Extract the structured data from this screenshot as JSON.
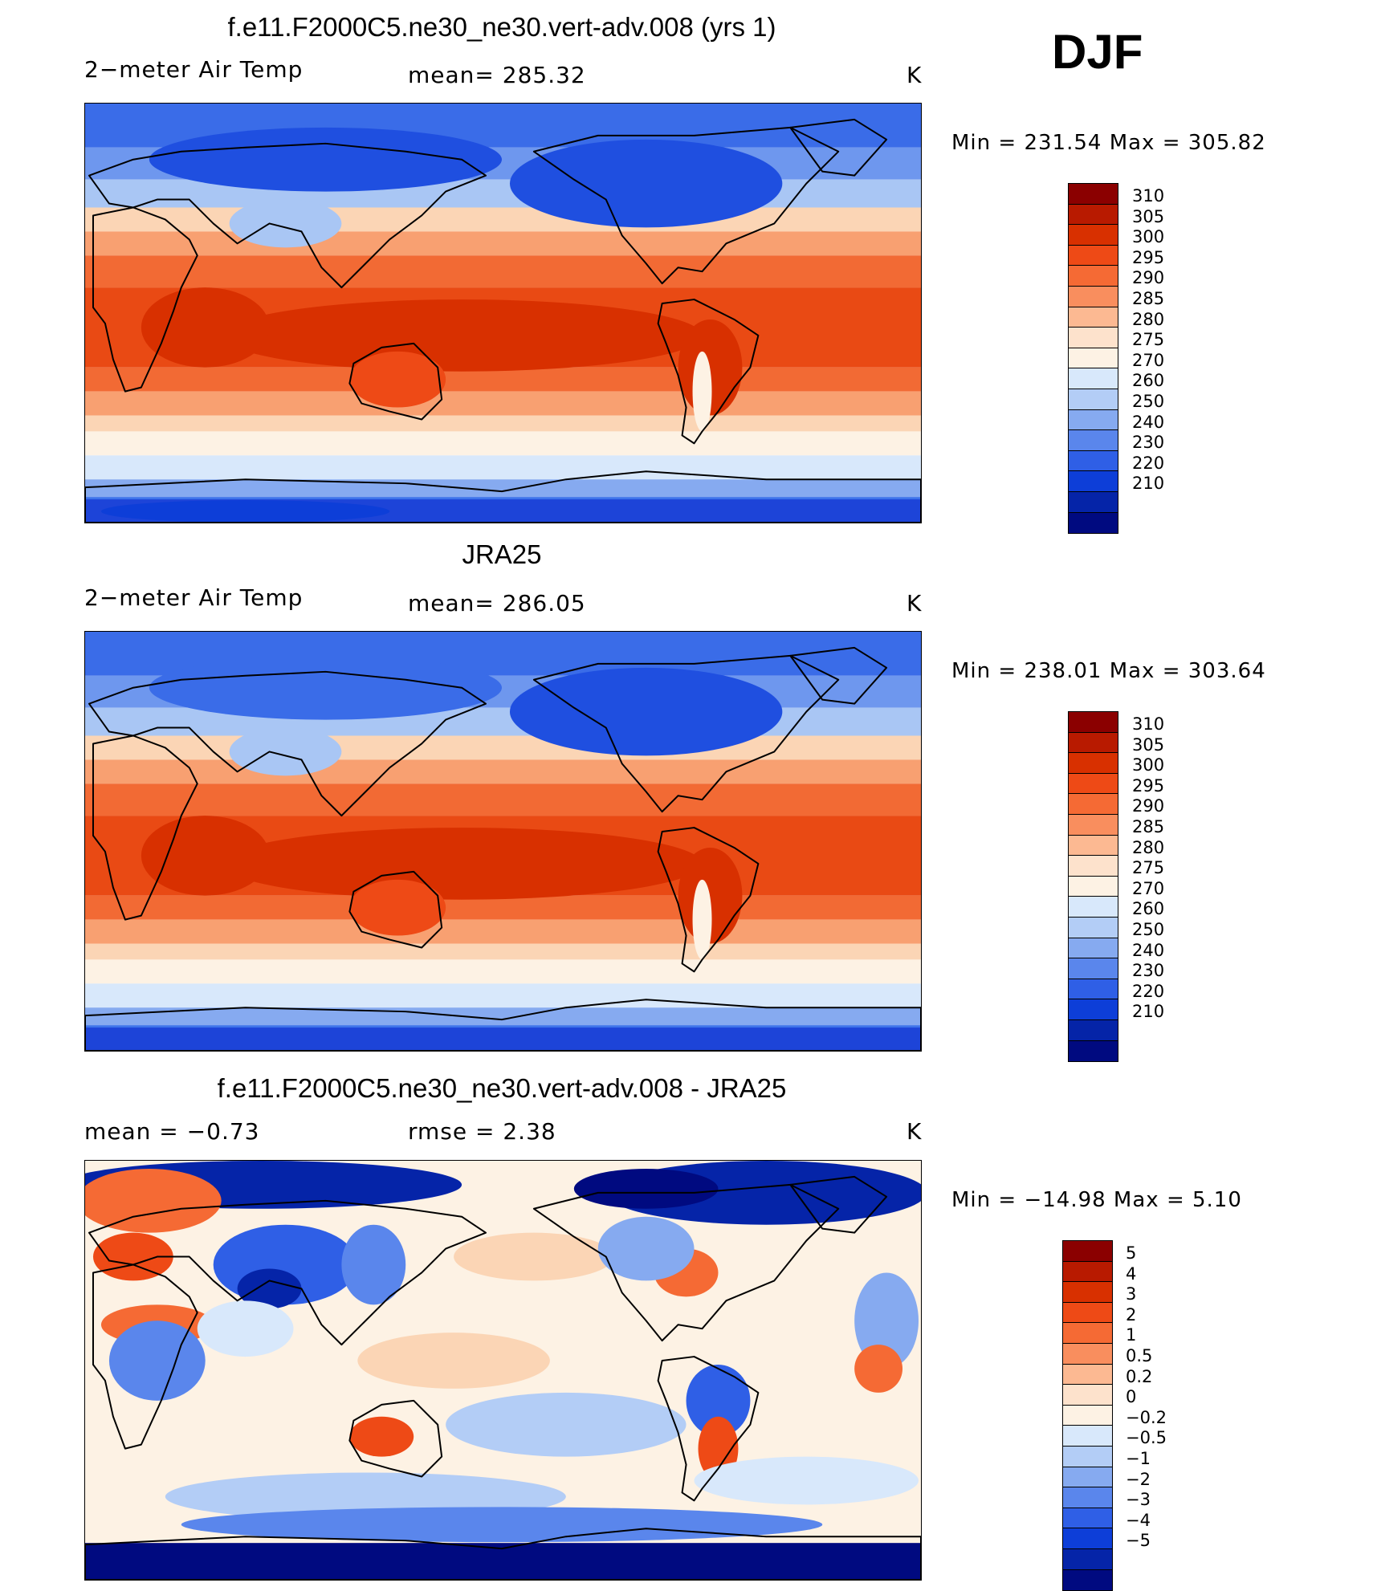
{
  "season": "DJF",
  "panels": [
    {
      "title": "f.e11.F2000C5.ne30_ne30.vert-adv.008 (yrs 1)",
      "left_label": "2−meter Air Temp",
      "center_label": "mean=  285.32",
      "units": "K",
      "minmax": "Min  =  231.54  Max  =  305.82",
      "field": "model"
    },
    {
      "title": "JRA25",
      "left_label": "2−meter Air Temp",
      "center_label": "mean=  286.05",
      "units": "K",
      "minmax": "Min  =  238.01  Max  =  303.64",
      "field": "obs"
    },
    {
      "title": "f.e11.F2000C5.ne30_ne30.vert-adv.008 - JRA25",
      "left_label": "mean  =     −0.73",
      "center_label": "rmse  =     2.38",
      "units": "K",
      "minmax": "Min  =  −14.98  Max  =      5.10",
      "field": "diff"
    }
  ],
  "colorbars": {
    "temp": {
      "labels": [
        "310",
        "305",
        "300",
        "295",
        "290",
        "285",
        "280",
        "275",
        "270",
        "260",
        "250",
        "240",
        "230",
        "220",
        "210"
      ],
      "colors": [
        "#8b0000",
        "#b81a00",
        "#d83000",
        "#ee4a16",
        "#f56a34",
        "#f98e5e",
        "#fcb992",
        "#fde2cc",
        "#fdf2e4",
        "#d8e8fb",
        "#b3cdf6",
        "#86aaf0",
        "#5a86ec",
        "#2f5fe6",
        "#0d3ed8",
        "#0524a8",
        "#000a80"
      ]
    },
    "diff": {
      "labels": [
        "5",
        "4",
        "3",
        "2",
        "1",
        "0.5",
        "0.2",
        "0",
        "−0.2",
        "−0.5",
        "−1",
        "−2",
        "−3",
        "−4",
        "−5"
      ],
      "colors": [
        "#8b0000",
        "#b81a00",
        "#d83000",
        "#ee4a16",
        "#f56a34",
        "#f98e5e",
        "#fcb992",
        "#fde2cc",
        "#fdf2e4",
        "#d8e8fb",
        "#b3cdf6",
        "#86aaf0",
        "#5a86ec",
        "#2f5fe6",
        "#0d3ed8",
        "#0524a8",
        "#000a80"
      ]
    }
  }
}
